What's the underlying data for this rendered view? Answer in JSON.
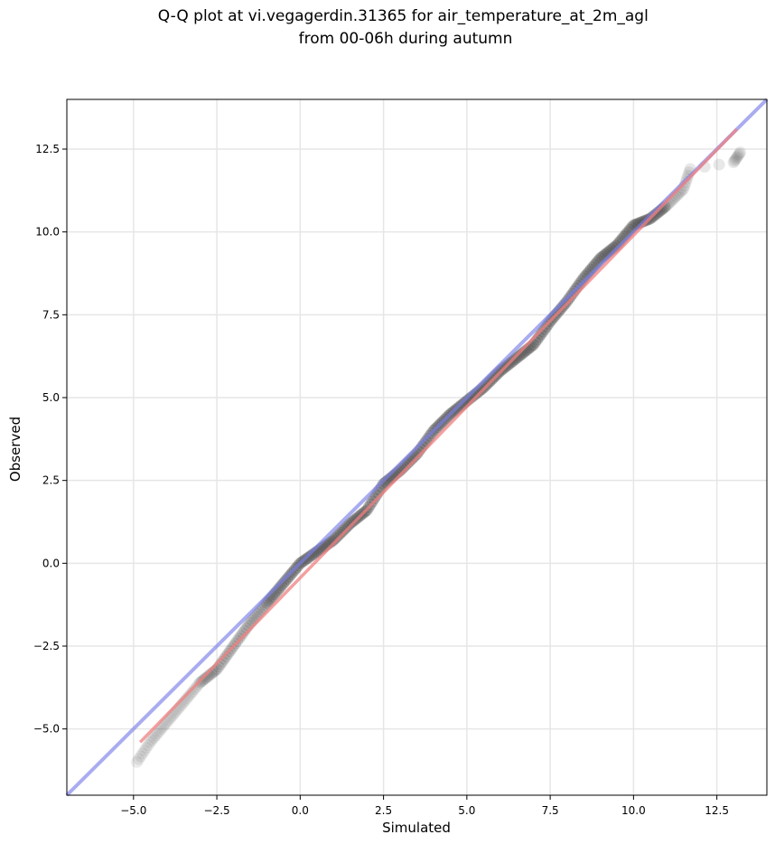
{
  "chart_data": {
    "type": "scatter",
    "title": "Q-Q plot at vi.vegagerdin.31365 for air_temperature_at_2m_agl\nfrom 00-06h during autumn",
    "xlabel": "Simulated",
    "ylabel": "Observed",
    "xlim": [
      -7.0,
      14.0
    ],
    "ylim": [
      -7.0,
      14.0
    ],
    "xticks": [
      -5.0,
      -2.5,
      0.0,
      2.5,
      5.0,
      7.5,
      10.0,
      12.5
    ],
    "yticks": [
      -5.0,
      -2.5,
      0.0,
      2.5,
      5.0,
      7.5,
      10.0,
      12.5
    ],
    "xtick_labels": [
      "−5.0",
      "−2.5",
      "0.0",
      "2.5",
      "5.0",
      "7.5",
      "10.0",
      "12.5"
    ],
    "ytick_labels": [
      "−5.0",
      "−2.5",
      "0.0",
      "2.5",
      "5.0",
      "7.5",
      "10.0",
      "12.5"
    ],
    "grid": true,
    "reference_line": {
      "x": [
        -7.0,
        14.0
      ],
      "y": [
        -7.0,
        14.0
      ],
      "color": "#7b7fe8"
    },
    "fit_line": {
      "x": [
        -4.8,
        13.1
      ],
      "y": [
        -5.4,
        13.1
      ],
      "color": "#f08080"
    },
    "point_color": "#444444",
    "quantile_anchors": {
      "x": [
        -4.9,
        -4.5,
        -4.0,
        -3.5,
        -3.0,
        -2.5,
        -2.0,
        -1.5,
        -1.0,
        -0.5,
        0.0,
        0.5,
        1.0,
        1.5,
        2.0,
        2.5,
        3.0,
        3.5,
        4.0,
        4.5,
        5.0,
        5.5,
        6.0,
        6.5,
        7.0,
        7.5,
        8.0,
        8.5,
        9.0,
        9.5,
        10.0,
        10.5,
        11.0,
        11.5,
        11.7,
        13.0,
        13.2
      ],
      "y": [
        -6.0,
        -5.4,
        -4.8,
        -4.2,
        -3.6,
        -3.2,
        -2.5,
        -1.8,
        -1.2,
        -0.6,
        0.0,
        0.35,
        0.7,
        1.2,
        1.6,
        2.4,
        2.8,
        3.3,
        4.0,
        4.5,
        4.9,
        5.3,
        5.8,
        6.2,
        6.6,
        7.3,
        7.9,
        8.6,
        9.2,
        9.6,
        10.2,
        10.4,
        10.8,
        11.3,
        11.9,
        12.1,
        12.4
      ]
    }
  }
}
